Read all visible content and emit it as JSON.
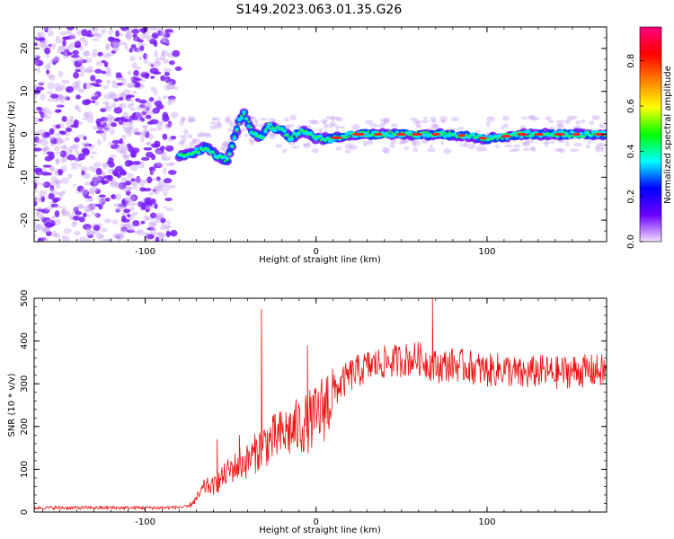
{
  "title": "S149.2023.063.01.35.G26",
  "colors": {
    "spectrum_points": "#7a1dff",
    "ridge": "#ff2222",
    "snr_line": "#ee1111",
    "axis": "#000000"
  },
  "chart_data": [
    {
      "type": "heatmap",
      "xlabel": "Height of straight line (km)",
      "ylabel": "Frequency (Hz)",
      "xlim": [
        -165,
        170
      ],
      "ylim": [
        -25,
        25
      ],
      "xticks": [
        -100,
        0,
        100
      ],
      "yticks": [
        -20,
        -10,
        0,
        10,
        20
      ],
      "xtick_labels": [
        "-100",
        "0",
        "100"
      ],
      "ytick_labels": [
        "-20",
        "-10",
        "0",
        "10",
        "20"
      ],
      "grid": false,
      "noise_region_x": [
        -165,
        -80
      ],
      "ridge": {
        "x": [
          -80,
          -70,
          -65,
          -58,
          -52,
          -48,
          -45,
          -42,
          -38,
          -32,
          -28,
          -20,
          -15,
          -8,
          0,
          10,
          20,
          40,
          60,
          80,
          100,
          120,
          140,
          160,
          170
        ],
        "y": [
          -5,
          -4,
          -3,
          -5,
          -6,
          -1,
          3,
          5,
          1,
          -1,
          2,
          1,
          -1,
          1,
          -1,
          -1,
          0,
          0,
          0,
          0,
          -1,
          0,
          0,
          0,
          0
        ]
      },
      "colorbar": {
        "label": "Normalized spectral amplitude",
        "range": [
          0.0,
          0.95
        ],
        "ticks": [
          0.0,
          0.2,
          0.4,
          0.6,
          0.8
        ],
        "tick_labels": [
          "0.0",
          "0.2",
          "0.4",
          "0.6",
          "0.8"
        ],
        "stops": [
          "#f4ddff",
          "#6a00ff",
          "#0000ff",
          "#00ffff",
          "#00ff00",
          "#ffff00",
          "#ff8000",
          "#ff0000",
          "#ff0080"
        ]
      }
    },
    {
      "type": "line",
      "xlabel": "Height of straight line (km)",
      "ylabel": "SNR (10 * v/v)",
      "xlim": [
        -165,
        170
      ],
      "ylim": [
        0,
        500
      ],
      "xticks": [
        -100,
        0,
        100
      ],
      "yticks": [
        0,
        100,
        200,
        300,
        400,
        500
      ],
      "xtick_labels": [
        "-100",
        "0",
        "100"
      ],
      "ytick_labels": [
        "0",
        "100",
        "200",
        "300",
        "400",
        "500"
      ],
      "grid": false,
      "series": [
        {
          "x": [
            -165,
            -150,
            -130,
            -110,
            -90,
            -75,
            -70,
            -65,
            -60,
            -55,
            -50,
            -45,
            -40,
            -35,
            -30,
            -25,
            -20,
            -15,
            -10,
            -5,
            0,
            5,
            10,
            15,
            20,
            25,
            30,
            40,
            50,
            60,
            70,
            80,
            90,
            100,
            110,
            120,
            130,
            140,
            150,
            160,
            170
          ],
          "values": [
            10,
            10,
            10,
            10,
            10,
            12,
            30,
            60,
            60,
            80,
            100,
            110,
            120,
            140,
            160,
            170,
            180,
            190,
            200,
            210,
            220,
            250,
            280,
            300,
            320,
            330,
            340,
            350,
            355,
            360,
            340,
            345,
            340,
            330,
            335,
            320,
            330,
            325,
            330,
            330,
            330
          ]
        }
      ],
      "spikes": [
        {
          "x": -58,
          "y": 170
        },
        {
          "x": -45,
          "y": 180
        },
        {
          "x": -32,
          "y": 475
        },
        {
          "x": -5,
          "y": 390
        },
        {
          "x": 68,
          "y": 500
        }
      ]
    }
  ]
}
